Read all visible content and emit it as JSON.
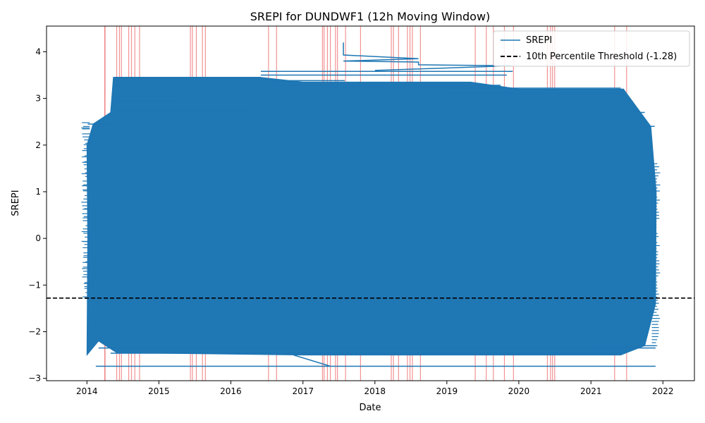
{
  "chart_data": {
    "type": "line",
    "title": "SREPI for DUNDWF1 (12h Moving Window)",
    "xlabel": "Date",
    "ylabel": "SREPI",
    "x_ticks": [
      "2014",
      "2015",
      "2016",
      "2017",
      "2018",
      "2019",
      "2020",
      "2021",
      "2022"
    ],
    "y_ticks": [
      "-3",
      "-2",
      "-1",
      "0",
      "1",
      "2",
      "3",
      "4"
    ],
    "y_tick_values": [
      -3,
      -2,
      -1,
      0,
      1,
      2,
      3,
      4
    ],
    "xlim": [
      "2013-06-10",
      "2022-06-10"
    ],
    "ylim": [
      -3.05,
      4.55
    ],
    "grid": false,
    "legend": {
      "placement": "top-right",
      "entries": [
        {
          "label": "SREPI",
          "style": "solid",
          "color": "#1f77b4"
        },
        {
          "label": "10th Percentile Threshold (-1.28)",
          "style": "dashed",
          "color": "#000000"
        }
      ]
    },
    "series": [
      {
        "name": "SREPI",
        "color": "#1f77b4",
        "approx_extent": {
          "start": "2014-01-01",
          "end": "2021-12-01",
          "band_min": -2.5,
          "band_max": 3.6,
          "y_min": -2.74,
          "y_max": 4.2
        },
        "notable_points": [
          {
            "x": "2017-07-25",
            "y": 4.2
          },
          {
            "x": "2017-07-25",
            "y": 3.93
          },
          {
            "x": "2018-08-10",
            "y": 3.85
          },
          {
            "x": "2017-07-25",
            "y": 3.8
          },
          {
            "x": "2019-11-25",
            "y": 3.7
          },
          {
            "x": "2016-07-15",
            "y": 3.58
          },
          {
            "x": "2014-05-15",
            "y": 3.45
          },
          {
            "x": "2014-01-10",
            "y": 2.45
          },
          {
            "x": "2017-05-20",
            "y": -2.74
          },
          {
            "x": "2014-02-15",
            "y": -2.74
          },
          {
            "x": "2021-11-25",
            "y": -2.74
          }
        ]
      }
    ],
    "threshold": {
      "label": "10th Percentile Threshold (-1.28)",
      "value": -1.28,
      "color": "#000000",
      "style": "dashed"
    },
    "highlight_dates": [
      "2014-04-01",
      "2014-04-03",
      "2014-06-01",
      "2014-06-15",
      "2014-06-25",
      "2014-08-01",
      "2014-08-15",
      "2014-09-01",
      "2014-09-25",
      "2015-06-10",
      "2015-06-20",
      "2015-07-10",
      "2015-08-10",
      "2015-08-25",
      "2016-07-10",
      "2016-08-20",
      "2017-04-10",
      "2017-04-18",
      "2017-05-05",
      "2017-05-20",
      "2017-06-15",
      "2017-06-25",
      "2017-08-05",
      "2017-10-20",
      "2018-03-25",
      "2018-04-05",
      "2018-05-01",
      "2018-06-15",
      "2018-06-28",
      "2018-07-10",
      "2018-08-20",
      "2019-05-25",
      "2019-07-20",
      "2019-08-25",
      "2019-10-20",
      "2019-12-05",
      "2020-05-25",
      "2020-06-10",
      "2020-06-20",
      "2020-07-01",
      "2021-05-01",
      "2021-07-01"
    ],
    "highlight_color": "#f08080"
  }
}
